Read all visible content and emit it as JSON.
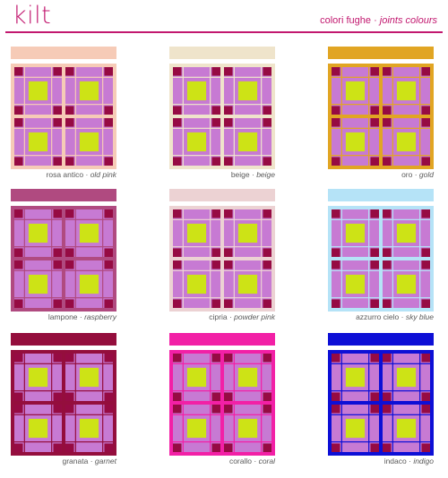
{
  "header": {
    "brand": "kilt",
    "subtitle_it": "colori fughe",
    "separator": "·",
    "subtitle_en": "joints colours"
  },
  "tile_colors": {
    "field": "#c77ad3",
    "center": "#cde316",
    "corner": "#960b43"
  },
  "samples": [
    {
      "name_it": "rosa antico",
      "name_en": "old pink",
      "joint": "#f6cbb7"
    },
    {
      "name_it": "beige",
      "name_en": "beige",
      "joint": "#efe4cb"
    },
    {
      "name_it": "oro",
      "name_en": "gold",
      "joint": "#e1a523"
    },
    {
      "name_it": "lampone",
      "name_en": "raspberry",
      "joint": "#b04a80"
    },
    {
      "name_it": "cipria",
      "name_en": "powder pink",
      "joint": "#ecd2d3"
    },
    {
      "name_it": "azzurro cielo",
      "name_en": "sky blue",
      "joint": "#b5e3f7"
    },
    {
      "name_it": "granata",
      "name_en": "garnet",
      "joint": "#940e3d"
    },
    {
      "name_it": "corallo",
      "name_en": "coral",
      "joint": "#f220a6"
    },
    {
      "name_it": "indaco",
      "name_en": "indigo",
      "joint": "#0d0fd6"
    }
  ]
}
